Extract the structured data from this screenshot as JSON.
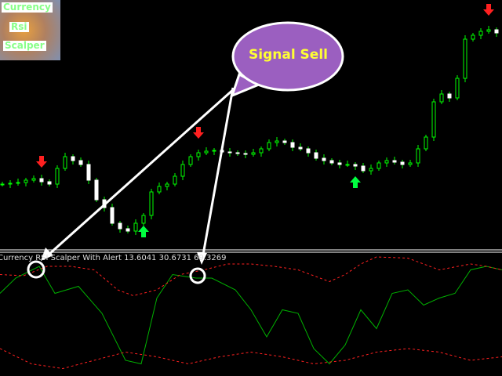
{
  "logo": {
    "line1": "Currency",
    "line2": "Rsi",
    "line3": "Scalper"
  },
  "callout": {
    "text": "Signal Sell",
    "fill": "#9b5fc0"
  },
  "indicator": {
    "label": "Currency RSI Scalper With Alert 13.6041 30.6731 69.3269"
  },
  "colors": {
    "bull": "#00ff00",
    "bear": "#ffffff",
    "rsi": "#00b000",
    "band": "#ff2020",
    "up_arrow": "#00ff40",
    "down_arrow": "#ff2020"
  },
  "chart_data": [
    {
      "type": "candlestick",
      "closes": [
        65,
        66,
        67,
        70,
        72,
        68,
        65,
        85,
        100,
        95,
        90,
        70,
        45,
        35,
        15,
        8,
        5,
        15,
        25,
        55,
        62,
        65,
        75,
        90,
        100,
        105,
        107,
        108,
        106,
        105,
        104,
        103,
        105,
        110,
        118,
        120,
        118,
        112,
        110,
        105,
        98,
        95,
        92,
        90,
        90,
        88,
        82,
        85,
        92,
        95,
        93,
        90,
        92,
        110,
        125,
        170,
        180,
        175,
        200,
        250,
        255,
        260,
        262,
        258
      ],
      "signals": [
        {
          "type": "sell",
          "index": 5
        },
        {
          "type": "buy",
          "index": 18
        },
        {
          "type": "sell",
          "index": 25
        },
        {
          "type": "buy",
          "index": 45
        },
        {
          "type": "sell",
          "index": 62
        }
      ]
    },
    {
      "type": "line",
      "ylim": [
        0,
        100
      ],
      "series": [
        {
          "style": "solid",
          "x": [
            0,
            20,
            50,
            70,
            100,
            130,
            160,
            180,
            200,
            220,
            250,
            270,
            300,
            320,
            340,
            360,
            380,
            400,
            420,
            440,
            460,
            480,
            500,
            520,
            540,
            560,
            580,
            600,
            620,
            640
          ],
          "values": [
            67,
            80,
            90,
            67,
            73,
            50,
            10,
            7,
            63,
            83,
            80,
            80,
            70,
            53,
            30,
            53,
            50,
            20,
            7,
            23,
            53,
            37,
            67,
            70,
            57,
            63,
            67,
            87,
            90,
            87
          ]
        },
        {
          "style": "dashed-upper",
          "x": [
            0,
            30,
            60,
            90,
            120,
            150,
            170,
            200,
            230,
            260,
            290,
            320,
            350,
            380,
            420,
            440,
            460,
            480,
            520,
            560,
            600,
            620,
            640
          ],
          "values": [
            83,
            82,
            90,
            90,
            87,
            70,
            65,
            70,
            83,
            87,
            92,
            92,
            90,
            87,
            77,
            83,
            92,
            98,
            97,
            87,
            92,
            90,
            87
          ]
        },
        {
          "style": "dashed-lower",
          "x": [
            0,
            40,
            80,
            120,
            160,
            200,
            240,
            280,
            320,
            360,
            400,
            440,
            480,
            520,
            560,
            600,
            640
          ],
          "values": [
            20,
            7,
            3,
            10,
            17,
            13,
            7,
            13,
            17,
            13,
            7,
            10,
            17,
            20,
            17,
            10,
            13
          ]
        }
      ]
    }
  ]
}
